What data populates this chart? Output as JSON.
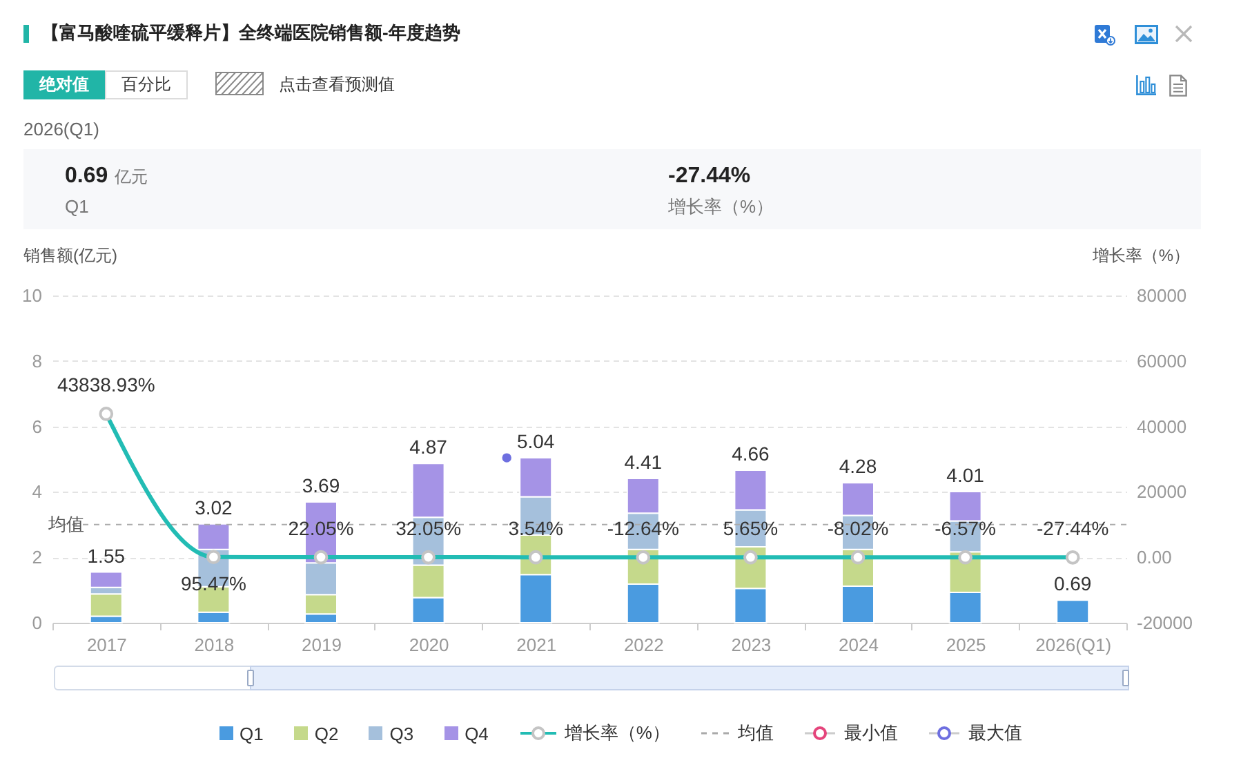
{
  "chart_data": {
    "type": "bar",
    "title": "【富马酸喹硫平缓释片】全终端医院销售额-年度趋势",
    "ylabel": "销售额(亿元)",
    "y2label": "增长率（%）",
    "categories": [
      "2017",
      "2018",
      "2019",
      "2020",
      "2021",
      "2022",
      "2023",
      "2024",
      "2025",
      "2026(Q1)"
    ],
    "stacked": true,
    "series": [
      {
        "name": "Q1",
        "color": "#4a9be0",
        "values": [
          0.2,
          0.32,
          0.27,
          0.77,
          1.47,
          1.18,
          1.05,
          1.12,
          0.93,
          0.69
        ]
      },
      {
        "name": "Q2",
        "color": "#c5d98b",
        "values": [
          0.68,
          0.78,
          0.59,
          0.99,
          1.21,
          1.06,
          1.27,
          1.12,
          1.24,
          null
        ]
      },
      {
        "name": "Q3",
        "color": "#a5c0dc",
        "values": [
          0.2,
          1.14,
          0.97,
          1.46,
          1.17,
          1.11,
          1.13,
          1.04,
          0.94,
          null
        ]
      },
      {
        "name": "Q4",
        "color": "#a593e6",
        "values": [
          0.47,
          0.78,
          1.86,
          1.65,
          1.19,
          1.06,
          1.21,
          1.0,
          0.9,
          null
        ]
      },
      {
        "name": "增长率（%）",
        "type": "line",
        "axis": "y2",
        "color": "#22bcb4",
        "marker": "circle",
        "values": [
          43838.93,
          95.47,
          22.05,
          32.05,
          3.54,
          -12.64,
          5.65,
          -8.02,
          -6.57,
          -27.44
        ],
        "value_labels": [
          "43838.93%",
          "95.47%",
          "22.05%",
          "32.05%",
          "3.54%",
          "-12.64%",
          "5.65%",
          "-8.02%",
          "-6.57%",
          "-27.44%"
        ]
      },
      {
        "name": "最小值",
        "type": "scatter",
        "color": "#e5457c",
        "values": [
          null,
          null,
          null,
          null,
          null,
          null,
          null,
          null,
          null,
          null
        ]
      },
      {
        "name": "最大值",
        "type": "scatter",
        "color": "#6e6fe0",
        "values": [
          null,
          null,
          null,
          null,
          5.04,
          null,
          null,
          null,
          null,
          null
        ]
      }
    ],
    "totals": [
      "1.55",
      "3.02",
      "3.69",
      "4.87",
      "5.04",
      "4.41",
      "4.66",
      "4.28",
      "4.01",
      "0.69"
    ],
    "ylim": [
      0,
      10
    ],
    "yticks": [
      0,
      2,
      4,
      6,
      8,
      10
    ],
    "y2lim": [
      -20000,
      80000
    ],
    "y2ticks": [
      -20000,
      {
        "value": 0,
        "label": "0.00"
      },
      20000,
      40000,
      60000,
      80000
    ],
    "ref_lines": [
      {
        "axis": "y",
        "value": 3,
        "label": "均值",
        "color": "#aaaaaa",
        "line_style": "dashed"
      }
    ],
    "grid": "y",
    "legend": "bottom",
    "annotations": [
      "绝对值",
      "百分比",
      "点击查看预测值",
      "2026(Q1)",
      "0.69",
      "亿元",
      "Q1",
      "-27.44%",
      "增长率（%）"
    ]
  }
}
